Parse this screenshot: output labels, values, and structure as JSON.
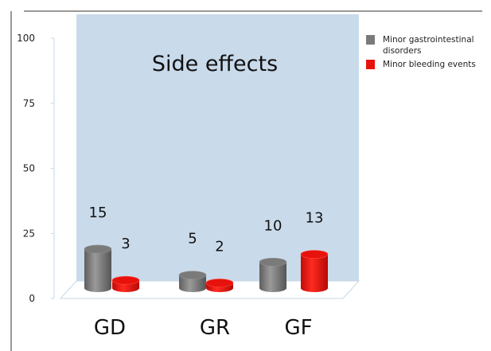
{
  "chart_data": {
    "type": "bar",
    "title": "Side effects",
    "categories": [
      "GD",
      "GR",
      "GF"
    ],
    "series": [
      {
        "name": "Minor gastrointestinal disorders",
        "values": [
          15,
          5,
          10
        ],
        "color": "#7a7a7a"
      },
      {
        "name": "Minor bleeding events",
        "values": [
          3,
          2,
          13
        ],
        "color": "#e8120c"
      }
    ],
    "ylim": [
      0,
      100
    ],
    "yticks": [
      0,
      25,
      50,
      75,
      100
    ],
    "xlabel": "",
    "ylabel": "",
    "legend_position": "top-right",
    "back_wall_color": "#c9daea",
    "style": "3d-cylinder"
  }
}
